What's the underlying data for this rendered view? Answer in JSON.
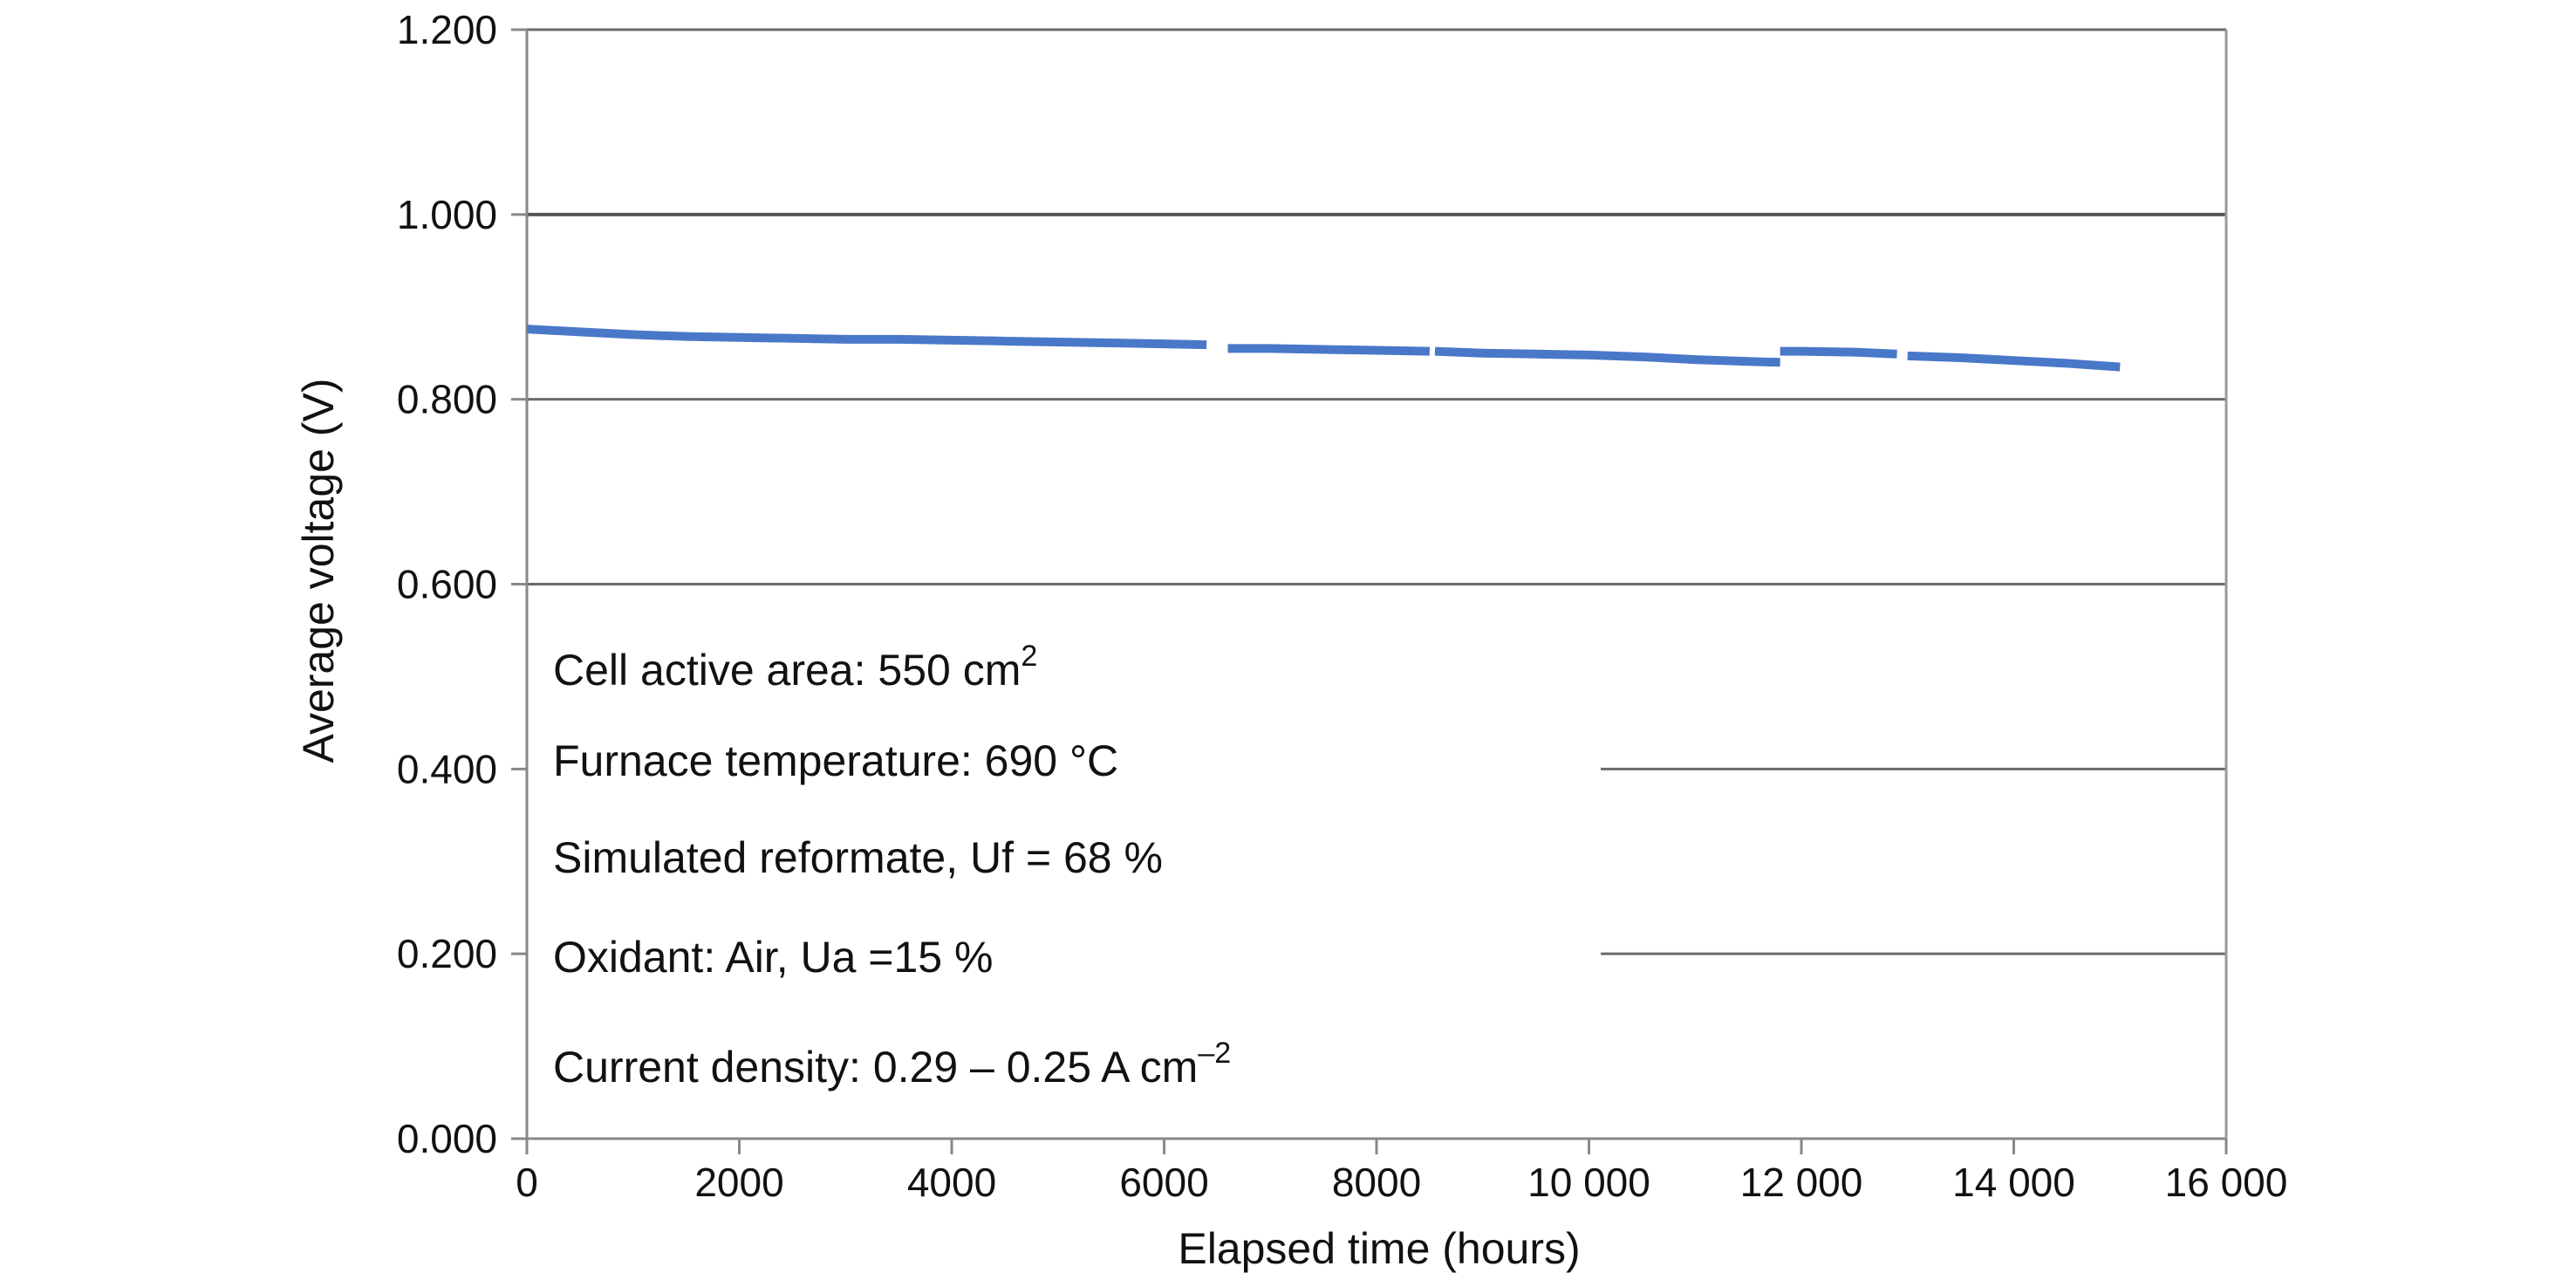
{
  "chart_data": {
    "type": "line",
    "xlabel": "Elapsed time (hours)",
    "ylabel": "Average voltage (V)",
    "xlim": [
      0,
      16000
    ],
    "ylim": [
      0,
      1.2
    ],
    "x_ticks": [
      0,
      2000,
      4000,
      6000,
      8000,
      10000,
      12000,
      14000,
      16000
    ],
    "x_tick_labels": [
      "0",
      "2000",
      "4000",
      "6000",
      "8000",
      "10 000",
      "12 000",
      "14 000",
      "16 000"
    ],
    "y_ticks": [
      0,
      0.2,
      0.4,
      0.6,
      0.8,
      1.0,
      1.2
    ],
    "y_tick_labels": [
      "0.000",
      "0.200",
      "0.400",
      "0.600",
      "0.800",
      "1.000",
      "1.200"
    ],
    "series": [
      {
        "name": "Average voltage",
        "color": "#4a78c8",
        "segments": [
          {
            "x": [
              0,
              500,
              1000,
              1500,
              2000,
              2500,
              3000,
              3500,
              4000,
              4500,
              5000,
              5500,
              6000,
              6400
            ],
            "y": [
              0.876,
              0.873,
              0.87,
              0.868,
              0.867,
              0.866,
              0.865,
              0.865,
              0.864,
              0.863,
              0.862,
              0.861,
              0.86,
              0.859
            ]
          },
          {
            "x": [
              6600,
              7000,
              7500,
              8000,
              8500
            ],
            "y": [
              0.855,
              0.855,
              0.854,
              0.853,
              0.852
            ]
          },
          {
            "x": [
              8550,
              9000,
              9500,
              10000,
              10500,
              11000,
              11500,
              11800
            ],
            "y": [
              0.852,
              0.85,
              0.849,
              0.848,
              0.846,
              0.843,
              0.841,
              0.84
            ]
          },
          {
            "x": [
              11800,
              12000,
              12500,
              12900
            ],
            "y": [
              0.852,
              0.852,
              0.851,
              0.849
            ]
          },
          {
            "x": [
              13000,
              13500,
              14000,
              14500,
              15000
            ],
            "y": [
              0.847,
              0.845,
              0.842,
              0.839,
              0.835
            ]
          }
        ]
      }
    ],
    "annotations": [
      {
        "text": "Cell active area: 550 cm",
        "sup": "2"
      },
      {
        "text": "Furnace temperature: 690 °C",
        "sup": ""
      },
      {
        "text": "Simulated reformate, Uf = 68 %",
        "sup": ""
      },
      {
        "text": "Oxidant: Air, Ua =15 %",
        "sup": ""
      },
      {
        "text": "Current density: 0.29 – 0.25 A cm",
        "sup": "–2"
      }
    ],
    "grid": true
  }
}
